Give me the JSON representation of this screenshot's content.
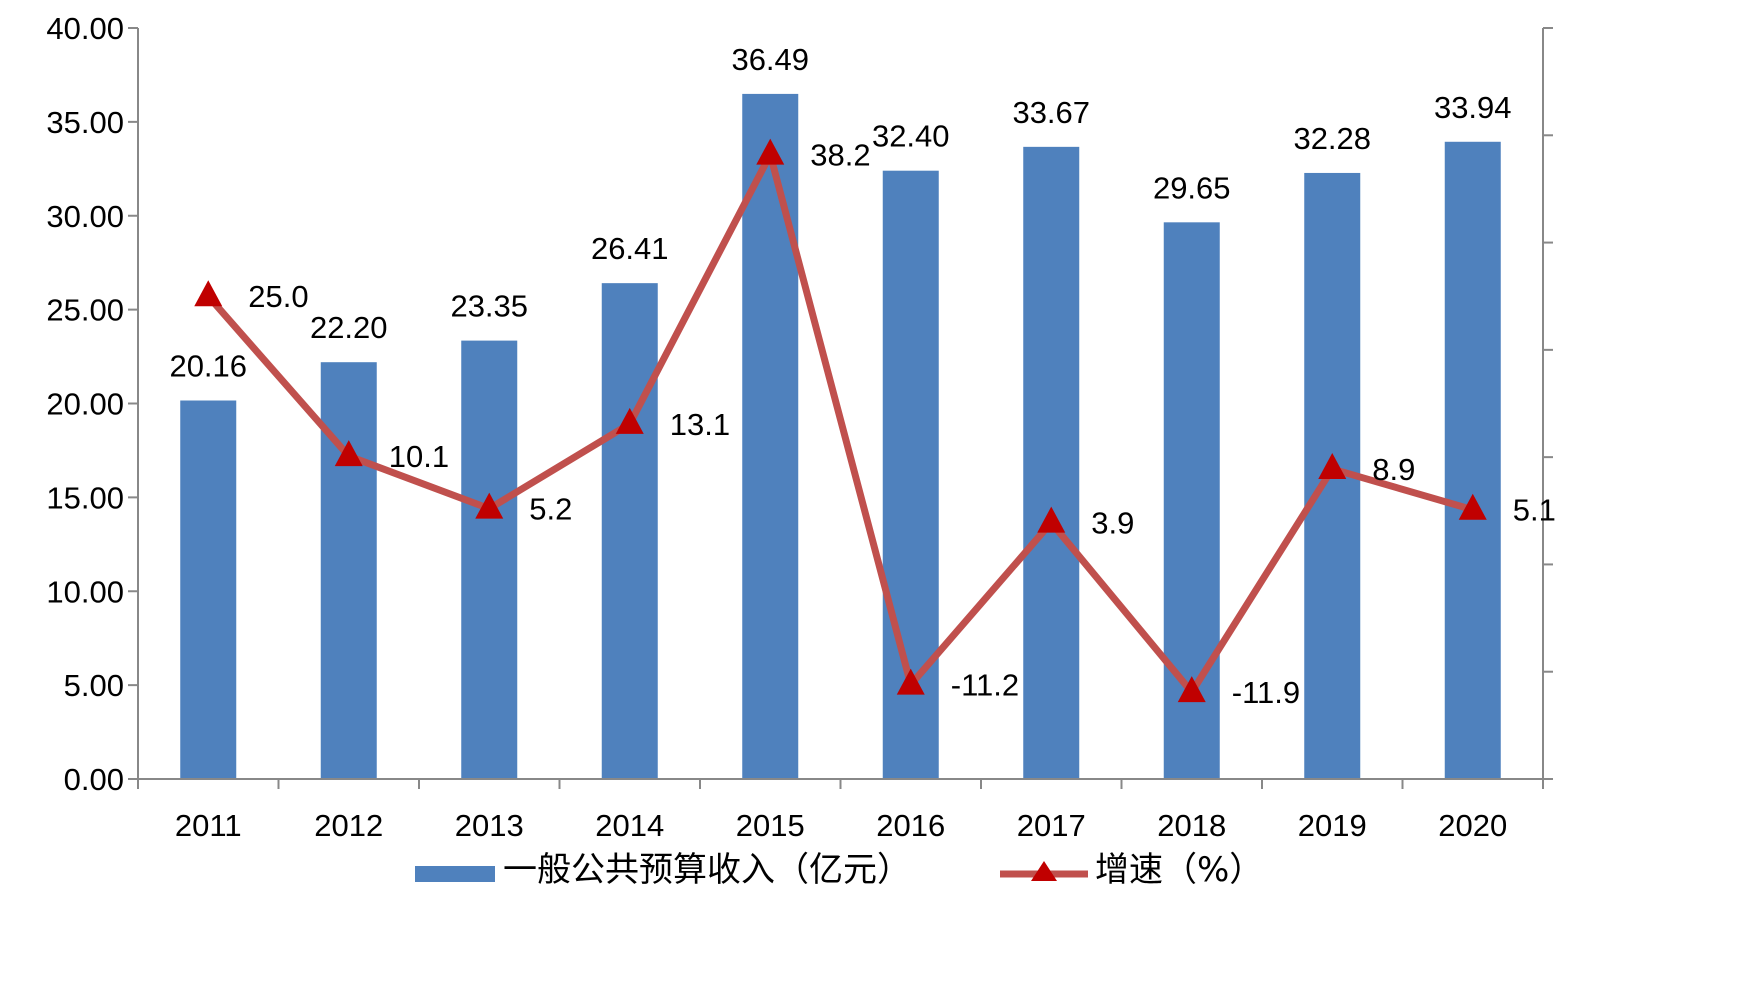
{
  "chart_data": {
    "type": "bar",
    "categories": [
      "2011",
      "2012",
      "2013",
      "2014",
      "2015",
      "2016",
      "2017",
      "2018",
      "2019",
      "2020"
    ],
    "series": [
      {
        "name": "一般公共预算收入（亿元）",
        "type": "bar",
        "axis": "left",
        "color": "#4F81BD",
        "values": [
          20.16,
          22.2,
          23.35,
          26.41,
          36.49,
          32.4,
          33.67,
          29.65,
          32.28,
          33.94
        ],
        "labels": [
          "20.16",
          "22.20",
          "23.35",
          "26.41",
          "36.49",
          "32.40",
          "33.67",
          "29.65",
          "32.28",
          "33.94"
        ]
      },
      {
        "name": "增速（%）",
        "type": "line",
        "axis": "right",
        "color": "#C0504D",
        "marker_color": "#C00000",
        "marker": "triangle",
        "values": [
          25.0,
          10.1,
          5.2,
          13.1,
          38.2,
          -11.2,
          3.9,
          -11.9,
          8.9,
          5.1
        ],
        "labels": [
          "25.0",
          "10.1",
          "5.2",
          "13.1",
          "38.2",
          "-11.2",
          "3.9",
          "-11.9",
          "8.9",
          "5.1"
        ]
      }
    ],
    "y_left": {
      "ylim": [
        0,
        40
      ],
      "ticks": [
        "0.00",
        "5.00",
        "10.00",
        "15.00",
        "20.00",
        "25.00",
        "30.00",
        "35.00",
        "40.00"
      ]
    },
    "y_right": {
      "ylim": [
        -20,
        50
      ]
    },
    "grid": false,
    "legend": "bottom",
    "title": "",
    "xlabel": "",
    "ylabel": ""
  }
}
